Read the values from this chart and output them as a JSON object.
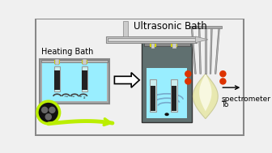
{
  "title": "Ultrasonic Bath",
  "subtitle_heating": "Heating Bath",
  "label_to": "To",
  "label_spectrometer": "spectrometer",
  "bg_color": "#f0f0f0",
  "border_color": "#888888",
  "water_color": "#99eeff",
  "bath_outer_color": "#607070",
  "tube_glass_color": "#cceeee",
  "tube_content_color": "#222222",
  "cap_color": "#dddd00",
  "arrow_fill": "#ffffff",
  "arrow_edge": "#000000",
  "green_color": "#bbee00",
  "flame_outer_color": "#e8e8b0",
  "dot_color": "#dd3300",
  "needle_color": "#bbbbbb",
  "coil_color": "#444444",
  "black_bg": "#111111",
  "grey_circles": "#666666",
  "wave_color": "#77aacc"
}
